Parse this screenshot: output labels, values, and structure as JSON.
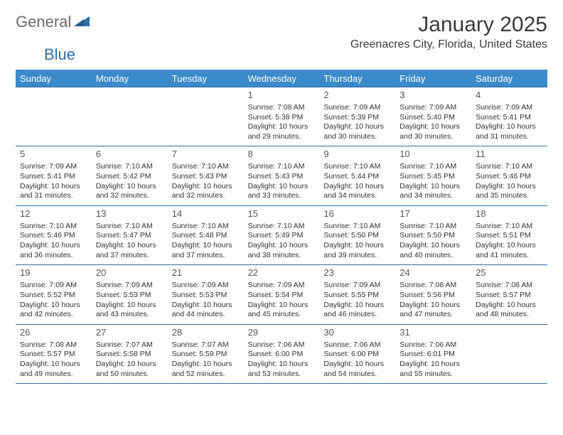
{
  "logo": {
    "text1": "General",
    "text2": "Blue"
  },
  "title": "January 2025",
  "location": "Greenacres City, Florida, United States",
  "colors": {
    "header_bg": "#3b8aca",
    "header_text": "#ffffff",
    "border": "#2f6fa8",
    "body_text": "#333333",
    "logo_gray": "#6a6a6a",
    "logo_blue": "#2f6fa8"
  },
  "day_names": [
    "Sunday",
    "Monday",
    "Tuesday",
    "Wednesday",
    "Thursday",
    "Friday",
    "Saturday"
  ],
  "weeks": [
    [
      null,
      null,
      null,
      {
        "n": "1",
        "sr": "Sunrise: 7:08 AM",
        "ss": "Sunset: 5:38 PM",
        "d1": "Daylight: 10 hours",
        "d2": "and 29 minutes."
      },
      {
        "n": "2",
        "sr": "Sunrise: 7:09 AM",
        "ss": "Sunset: 5:39 PM",
        "d1": "Daylight: 10 hours",
        "d2": "and 30 minutes."
      },
      {
        "n": "3",
        "sr": "Sunrise: 7:09 AM",
        "ss": "Sunset: 5:40 PM",
        "d1": "Daylight: 10 hours",
        "d2": "and 30 minutes."
      },
      {
        "n": "4",
        "sr": "Sunrise: 7:09 AM",
        "ss": "Sunset: 5:41 PM",
        "d1": "Daylight: 10 hours",
        "d2": "and 31 minutes."
      }
    ],
    [
      {
        "n": "5",
        "sr": "Sunrise: 7:09 AM",
        "ss": "Sunset: 5:41 PM",
        "d1": "Daylight: 10 hours",
        "d2": "and 31 minutes."
      },
      {
        "n": "6",
        "sr": "Sunrise: 7:10 AM",
        "ss": "Sunset: 5:42 PM",
        "d1": "Daylight: 10 hours",
        "d2": "and 32 minutes."
      },
      {
        "n": "7",
        "sr": "Sunrise: 7:10 AM",
        "ss": "Sunset: 5:43 PM",
        "d1": "Daylight: 10 hours",
        "d2": "and 32 minutes."
      },
      {
        "n": "8",
        "sr": "Sunrise: 7:10 AM",
        "ss": "Sunset: 5:43 PM",
        "d1": "Daylight: 10 hours",
        "d2": "and 33 minutes."
      },
      {
        "n": "9",
        "sr": "Sunrise: 7:10 AM",
        "ss": "Sunset: 5:44 PM",
        "d1": "Daylight: 10 hours",
        "d2": "and 34 minutes."
      },
      {
        "n": "10",
        "sr": "Sunrise: 7:10 AM",
        "ss": "Sunset: 5:45 PM",
        "d1": "Daylight: 10 hours",
        "d2": "and 34 minutes."
      },
      {
        "n": "11",
        "sr": "Sunrise: 7:10 AM",
        "ss": "Sunset: 5:46 PM",
        "d1": "Daylight: 10 hours",
        "d2": "and 35 minutes."
      }
    ],
    [
      {
        "n": "12",
        "sr": "Sunrise: 7:10 AM",
        "ss": "Sunset: 5:46 PM",
        "d1": "Daylight: 10 hours",
        "d2": "and 36 minutes."
      },
      {
        "n": "13",
        "sr": "Sunrise: 7:10 AM",
        "ss": "Sunset: 5:47 PM",
        "d1": "Daylight: 10 hours",
        "d2": "and 37 minutes."
      },
      {
        "n": "14",
        "sr": "Sunrise: 7:10 AM",
        "ss": "Sunset: 5:48 PM",
        "d1": "Daylight: 10 hours",
        "d2": "and 37 minutes."
      },
      {
        "n": "15",
        "sr": "Sunrise: 7:10 AM",
        "ss": "Sunset: 5:49 PM",
        "d1": "Daylight: 10 hours",
        "d2": "and 38 minutes."
      },
      {
        "n": "16",
        "sr": "Sunrise: 7:10 AM",
        "ss": "Sunset: 5:50 PM",
        "d1": "Daylight: 10 hours",
        "d2": "and 39 minutes."
      },
      {
        "n": "17",
        "sr": "Sunrise: 7:10 AM",
        "ss": "Sunset: 5:50 PM",
        "d1": "Daylight: 10 hours",
        "d2": "and 40 minutes."
      },
      {
        "n": "18",
        "sr": "Sunrise: 7:10 AM",
        "ss": "Sunset: 5:51 PM",
        "d1": "Daylight: 10 hours",
        "d2": "and 41 minutes."
      }
    ],
    [
      {
        "n": "19",
        "sr": "Sunrise: 7:09 AM",
        "ss": "Sunset: 5:52 PM",
        "d1": "Daylight: 10 hours",
        "d2": "and 42 minutes."
      },
      {
        "n": "20",
        "sr": "Sunrise: 7:09 AM",
        "ss": "Sunset: 5:53 PM",
        "d1": "Daylight: 10 hours",
        "d2": "and 43 minutes."
      },
      {
        "n": "21",
        "sr": "Sunrise: 7:09 AM",
        "ss": "Sunset: 5:53 PM",
        "d1": "Daylight: 10 hours",
        "d2": "and 44 minutes."
      },
      {
        "n": "22",
        "sr": "Sunrise: 7:09 AM",
        "ss": "Sunset: 5:54 PM",
        "d1": "Daylight: 10 hours",
        "d2": "and 45 minutes."
      },
      {
        "n": "23",
        "sr": "Sunrise: 7:09 AM",
        "ss": "Sunset: 5:55 PM",
        "d1": "Daylight: 10 hours",
        "d2": "and 46 minutes."
      },
      {
        "n": "24",
        "sr": "Sunrise: 7:08 AM",
        "ss": "Sunset: 5:56 PM",
        "d1": "Daylight: 10 hours",
        "d2": "and 47 minutes."
      },
      {
        "n": "25",
        "sr": "Sunrise: 7:08 AM",
        "ss": "Sunset: 5:57 PM",
        "d1": "Daylight: 10 hours",
        "d2": "and 48 minutes."
      }
    ],
    [
      {
        "n": "26",
        "sr": "Sunrise: 7:08 AM",
        "ss": "Sunset: 5:57 PM",
        "d1": "Daylight: 10 hours",
        "d2": "and 49 minutes."
      },
      {
        "n": "27",
        "sr": "Sunrise: 7:07 AM",
        "ss": "Sunset: 5:58 PM",
        "d1": "Daylight: 10 hours",
        "d2": "and 50 minutes."
      },
      {
        "n": "28",
        "sr": "Sunrise: 7:07 AM",
        "ss": "Sunset: 5:59 PM",
        "d1": "Daylight: 10 hours",
        "d2": "and 52 minutes."
      },
      {
        "n": "29",
        "sr": "Sunrise: 7:06 AM",
        "ss": "Sunset: 6:00 PM",
        "d1": "Daylight: 10 hours",
        "d2": "and 53 minutes."
      },
      {
        "n": "30",
        "sr": "Sunrise: 7:06 AM",
        "ss": "Sunset: 6:00 PM",
        "d1": "Daylight: 10 hours",
        "d2": "and 54 minutes."
      },
      {
        "n": "31",
        "sr": "Sunrise: 7:06 AM",
        "ss": "Sunset: 6:01 PM",
        "d1": "Daylight: 10 hours",
        "d2": "and 55 minutes."
      },
      null
    ]
  ]
}
